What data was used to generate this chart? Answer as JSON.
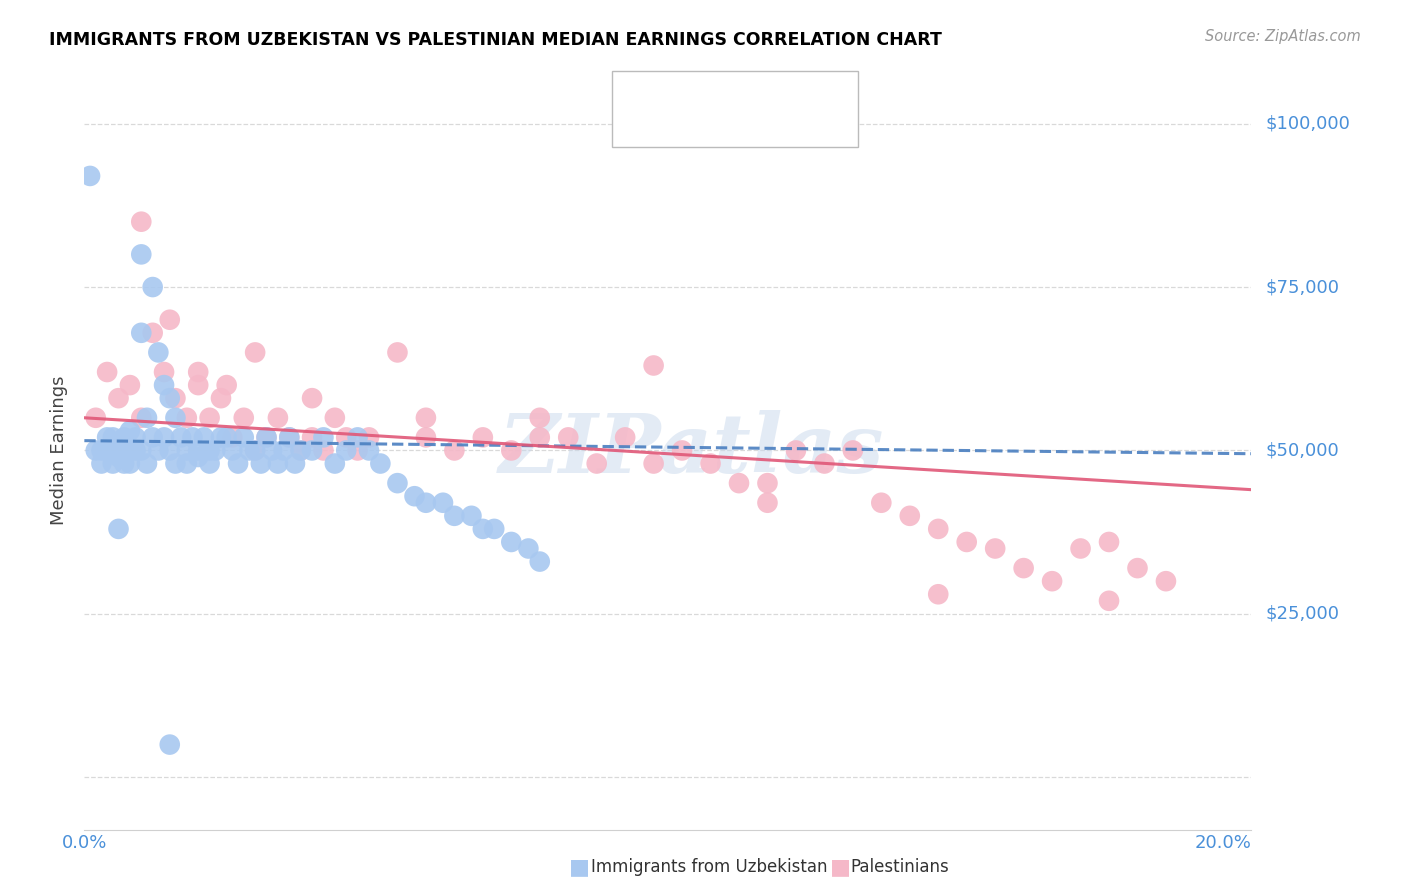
{
  "title": "IMMIGRANTS FROM UZBEKISTAN VS PALESTINIAN MEDIAN EARNINGS CORRELATION CHART",
  "source": "Source: ZipAtlas.com",
  "ylabel": "Median Earnings",
  "xlim": [
    0.0,
    0.205
  ],
  "ylim": [
    -8000,
    108000
  ],
  "yticks": [
    0,
    25000,
    50000,
    75000,
    100000
  ],
  "ytick_labels": [
    "",
    "$25,000",
    "$50,000",
    "$75,000",
    "$100,000"
  ],
  "xticks": [
    0.0,
    0.05,
    0.1,
    0.15,
    0.2
  ],
  "xtick_labels": [
    "0.0%",
    "",
    "",
    "",
    "20.0%"
  ],
  "blue_color": "#a8c8f0",
  "pink_color": "#f5b8c8",
  "blue_line_color": "#4a7fc0",
  "pink_line_color": "#e05878",
  "axis_color": "#4a90d9",
  "grid_color": "#d0d0d0",
  "watermark": "ZIPatlas",
  "blue_scatter_x": [
    0.001,
    0.002,
    0.003,
    0.003,
    0.004,
    0.004,
    0.005,
    0.005,
    0.005,
    0.006,
    0.006,
    0.006,
    0.007,
    0.007,
    0.007,
    0.008,
    0.008,
    0.008,
    0.009,
    0.009,
    0.01,
    0.01,
    0.01,
    0.011,
    0.011,
    0.012,
    0.012,
    0.013,
    0.013,
    0.014,
    0.014,
    0.015,
    0.015,
    0.016,
    0.016,
    0.017,
    0.018,
    0.018,
    0.019,
    0.02,
    0.02,
    0.021,
    0.022,
    0.022,
    0.023,
    0.024,
    0.025,
    0.026,
    0.027,
    0.028,
    0.029,
    0.03,
    0.031,
    0.032,
    0.033,
    0.034,
    0.035,
    0.036,
    0.037,
    0.038,
    0.04,
    0.042,
    0.044,
    0.046,
    0.048,
    0.05,
    0.052,
    0.055,
    0.058,
    0.06,
    0.063,
    0.065,
    0.068,
    0.07,
    0.072,
    0.075,
    0.078,
    0.08,
    0.006,
    0.015
  ],
  "blue_scatter_y": [
    92000,
    50000,
    50000,
    48000,
    52000,
    50000,
    50000,
    48000,
    52000,
    51000,
    50000,
    49000,
    52000,
    50000,
    48000,
    53000,
    50000,
    48000,
    52000,
    50000,
    80000,
    68000,
    50000,
    55000,
    48000,
    75000,
    52000,
    65000,
    50000,
    60000,
    52000,
    58000,
    50000,
    55000,
    48000,
    52000,
    50000,
    48000,
    52000,
    50000,
    49000,
    52000,
    50000,
    48000,
    50000,
    52000,
    52000,
    50000,
    48000,
    52000,
    50000,
    50000,
    48000,
    52000,
    50000,
    48000,
    50000,
    52000,
    48000,
    50000,
    50000,
    52000,
    48000,
    50000,
    52000,
    50000,
    48000,
    45000,
    43000,
    42000,
    42000,
    40000,
    40000,
    38000,
    38000,
    36000,
    35000,
    33000,
    38000,
    5000
  ],
  "pink_scatter_x": [
    0.002,
    0.004,
    0.006,
    0.008,
    0.01,
    0.012,
    0.014,
    0.016,
    0.018,
    0.02,
    0.022,
    0.024,
    0.026,
    0.028,
    0.03,
    0.032,
    0.034,
    0.036,
    0.038,
    0.04,
    0.042,
    0.044,
    0.046,
    0.048,
    0.05,
    0.055,
    0.06,
    0.065,
    0.07,
    0.075,
    0.08,
    0.085,
    0.09,
    0.095,
    0.1,
    0.105,
    0.11,
    0.115,
    0.12,
    0.125,
    0.13,
    0.135,
    0.14,
    0.145,
    0.15,
    0.155,
    0.16,
    0.165,
    0.17,
    0.175,
    0.18,
    0.185,
    0.19,
    0.01,
    0.015,
    0.02,
    0.025,
    0.03,
    0.04,
    0.06,
    0.08,
    0.1,
    0.12,
    0.15,
    0.18
  ],
  "pink_scatter_y": [
    55000,
    62000,
    58000,
    60000,
    55000,
    68000,
    62000,
    58000,
    55000,
    60000,
    55000,
    58000,
    52000,
    55000,
    50000,
    52000,
    55000,
    52000,
    50000,
    52000,
    50000,
    55000,
    52000,
    50000,
    52000,
    65000,
    55000,
    50000,
    52000,
    50000,
    55000,
    52000,
    48000,
    52000,
    63000,
    50000,
    48000,
    45000,
    42000,
    50000,
    48000,
    50000,
    42000,
    40000,
    38000,
    36000,
    35000,
    32000,
    30000,
    35000,
    36000,
    32000,
    30000,
    85000,
    70000,
    62000,
    60000,
    65000,
    58000,
    52000,
    52000,
    48000,
    45000,
    28000,
    27000
  ],
  "blue_trend_x": [
    0.0,
    0.205
  ],
  "blue_trend_y": [
    51500,
    49500
  ],
  "pink_trend_x": [
    0.0,
    0.205
  ],
  "pink_trend_y": [
    55000,
    44000
  ]
}
